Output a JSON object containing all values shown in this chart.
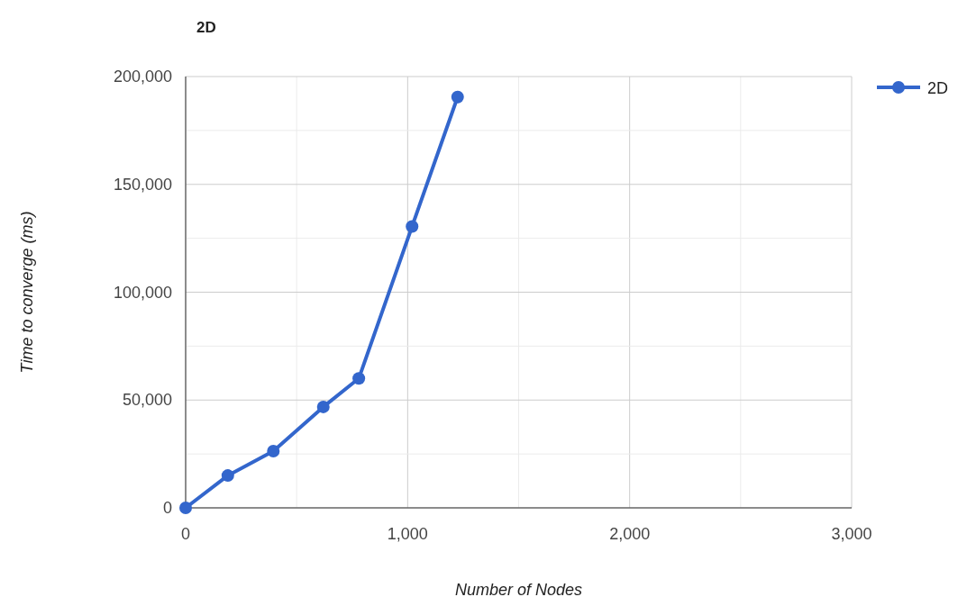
{
  "chart_data": {
    "type": "line",
    "title": "2D",
    "xlabel": "Number of Nodes",
    "ylabel": "Time to converge (ms)",
    "x": [
      0,
      190,
      395,
      620,
      780,
      1020,
      1225
    ],
    "series": [
      {
        "name": "2D",
        "color": "#3366cc",
        "values": [
          0,
          15000,
          26300,
          46800,
          60000,
          130500,
          190500
        ]
      }
    ],
    "xlim": [
      0,
      3000
    ],
    "xticks": [
      0,
      {
        "value": 500,
        "label": null
      },
      {
        "value": 1000,
        "label": "1,000"
      },
      {
        "value": 1500,
        "label": null
      },
      {
        "value": 2000,
        "label": "2,000"
      },
      {
        "value": 2500,
        "label": null
      },
      {
        "value": 3000,
        "label": "3,000"
      }
    ],
    "ylim": [
      0,
      200000
    ],
    "yticks": [
      0,
      {
        "value": 25000,
        "label": null
      },
      {
        "value": 50000,
        "label": "50,000"
      },
      {
        "value": 75000,
        "label": null
      },
      {
        "value": 100000,
        "label": "100,000"
      },
      {
        "value": 125000,
        "label": null
      },
      {
        "value": 150000,
        "label": "150,000"
      },
      {
        "value": 175000,
        "label": null
      },
      {
        "value": 200000,
        "label": "200,000"
      }
    ],
    "grid": true,
    "legend": "top right",
    "marker": "circle",
    "line_style": "solid"
  }
}
